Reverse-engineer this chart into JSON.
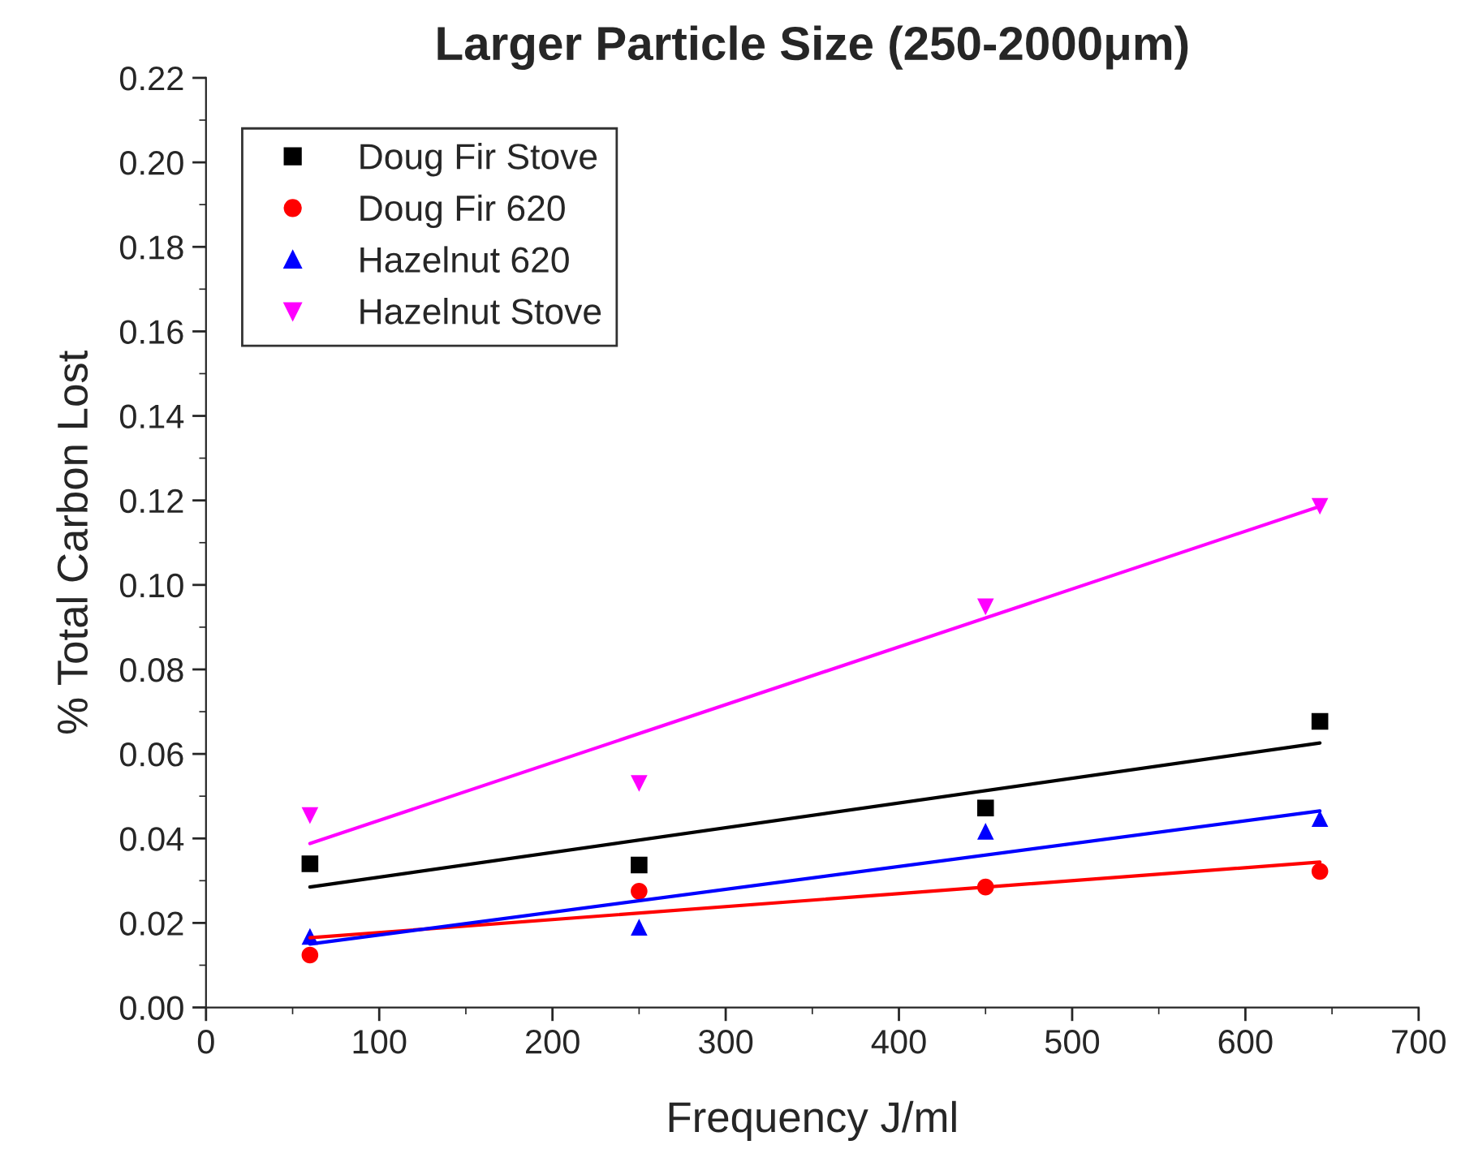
{
  "chart_data": {
    "type": "scatter",
    "title": "Larger Particle Size (250-2000μm)",
    "xlabel": "Frequency J/ml",
    "ylabel": "% Total Carbon Lost",
    "xlim": [
      0,
      700
    ],
    "xticks": [
      0,
      100,
      200,
      300,
      400,
      500,
      600,
      700
    ],
    "ylim": [
      0,
      0.22
    ],
    "yticks": [
      {
        "value": 0,
        "label": "0.00"
      },
      {
        "value": 0.02,
        "label": "0.02"
      },
      {
        "value": 0.04,
        "label": "0.04"
      },
      {
        "value": 0.06,
        "label": "0.06"
      },
      {
        "value": 0.08,
        "label": "0.08"
      },
      {
        "value": 0.1,
        "label": "0.10"
      },
      {
        "value": 0.12,
        "label": "0.12"
      },
      {
        "value": 0.14,
        "label": "0.14"
      },
      {
        "value": 0.16,
        "label": "0.16"
      },
      {
        "value": 0.18,
        "label": "0.18"
      },
      {
        "value": 0.2,
        "label": "0.20"
      },
      {
        "value": 0.22,
        "label": "0.22"
      }
    ],
    "grid": false,
    "legend": "top left",
    "series": [
      {
        "name": "Doug Fir Stove",
        "color": "#000000",
        "marker": "square",
        "x": [
          60,
          250,
          450,
          643
        ],
        "values": [
          0.034,
          0.0337,
          0.0472,
          0.0677
        ]
      },
      {
        "name": "Doug Fir 620",
        "color": "#ff0000",
        "marker": "circle",
        "x": [
          60,
          250,
          450,
          643
        ],
        "values": [
          0.0124,
          0.0275,
          0.0285,
          0.0322
        ]
      },
      {
        "name": "Hazelnut 620",
        "color": "#0000ff",
        "marker": "triangle",
        "x": [
          60,
          250,
          450,
          643
        ],
        "values": [
          0.0168,
          0.019,
          0.0417,
          0.0447
        ]
      },
      {
        "name": "Hazelnut Stove",
        "color": "#ff00ff",
        "marker": "triangle_down",
        "x": [
          60,
          250,
          450,
          643
        ],
        "values": [
          0.0454,
          0.053,
          0.0948,
          0.1186
        ]
      },
      {
        "type": "line",
        "color": "#000000",
        "x": [
          60,
          643
        ],
        "values": [
          0.0285,
          0.0626
        ]
      },
      {
        "type": "line",
        "color": "#ff0000",
        "x": [
          60,
          643
        ],
        "values": [
          0.0165,
          0.0344
        ]
      },
      {
        "type": "line",
        "color": "#0000ff",
        "x": [
          60,
          643
        ],
        "values": [
          0.015,
          0.0465
        ]
      },
      {
        "type": "line",
        "color": "#ff00ff",
        "x": [
          60,
          643
        ],
        "values": [
          0.0388,
          0.1186
        ]
      }
    ]
  }
}
